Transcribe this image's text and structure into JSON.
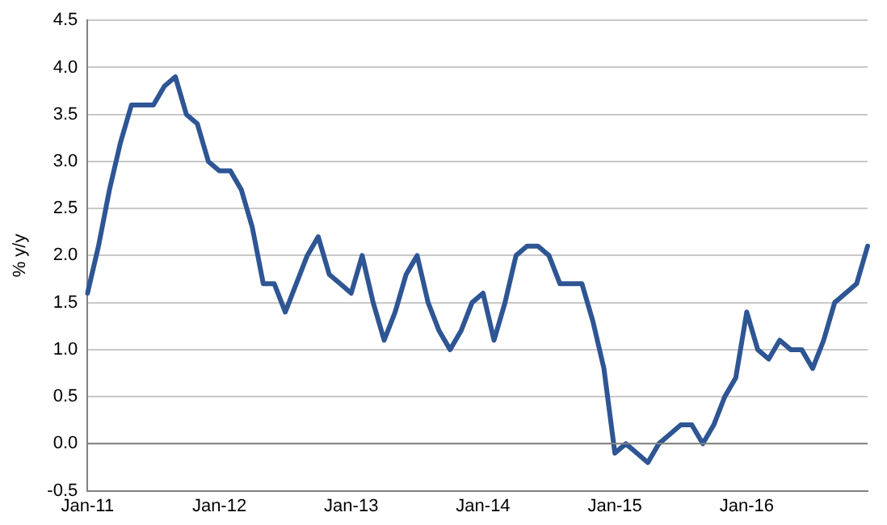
{
  "chart_data": {
    "type": "line",
    "ylabel": "% y/y",
    "categories": [
      "Jan-11",
      null,
      null,
      null,
      null,
      null,
      null,
      null,
      null,
      null,
      null,
      null,
      "Jan-12",
      null,
      null,
      null,
      null,
      null,
      null,
      null,
      null,
      null,
      null,
      null,
      "Jan-13",
      null,
      null,
      null,
      null,
      null,
      null,
      null,
      null,
      null,
      null,
      null,
      "Jan-14",
      null,
      null,
      null,
      null,
      null,
      null,
      null,
      null,
      null,
      null,
      null,
      "Jan-15",
      null,
      null,
      null,
      null,
      null,
      null,
      null,
      null,
      null,
      null,
      null,
      "Jan-16",
      null,
      null,
      null,
      null,
      null,
      null,
      null,
      null,
      null,
      null,
      null
    ],
    "series": [
      {
        "color": "#2e5594",
        "values": [
          1.6,
          2.1,
          2.7,
          3.2,
          3.6,
          3.6,
          3.6,
          3.8,
          3.9,
          3.5,
          3.4,
          3.0,
          2.9,
          2.9,
          2.7,
          2.3,
          1.7,
          1.7,
          1.4,
          1.7,
          2.0,
          2.2,
          1.8,
          1.7,
          1.6,
          2.0,
          1.5,
          1.1,
          1.4,
          1.8,
          2.0,
          1.5,
          1.2,
          1.0,
          1.2,
          1.5,
          1.6,
          1.1,
          1.5,
          2.0,
          2.1,
          2.1,
          2.0,
          1.7,
          1.7,
          1.7,
          1.3,
          0.8,
          -0.1,
          0.0,
          -0.1,
          -0.2,
          0.0,
          0.1,
          0.2,
          0.2,
          0.0,
          0.2,
          0.5,
          0.7,
          1.4,
          1.0,
          0.9,
          1.1,
          1.0,
          1.0,
          0.8,
          1.1,
          1.5,
          1.6,
          1.7,
          2.1
        ]
      }
    ],
    "ylim": [
      -0.5,
      4.5
    ],
    "yticks": [
      {
        "value": -0.5,
        "label": "-0.5"
      },
      {
        "value": 0,
        "label": "0.0"
      },
      {
        "value": 0.5,
        "label": "0.5"
      },
      {
        "value": 1,
        "label": "1.0"
      },
      {
        "value": 1.5,
        "label": "1.5"
      },
      {
        "value": 2,
        "label": "2.0"
      },
      {
        "value": 2.5,
        "label": "2.5"
      },
      {
        "value": 3,
        "label": "3.0"
      },
      {
        "value": 3.5,
        "label": "3.5"
      },
      {
        "value": 4,
        "label": "4.0"
      },
      {
        "value": 4.5,
        "label": "4.5"
      }
    ],
    "grid": "y",
    "legend": false,
    "marker": "none",
    "line_style": "solid",
    "ref_lines": [
      {
        "axis": "y",
        "value": 0,
        "color": "#808080"
      }
    ]
  }
}
